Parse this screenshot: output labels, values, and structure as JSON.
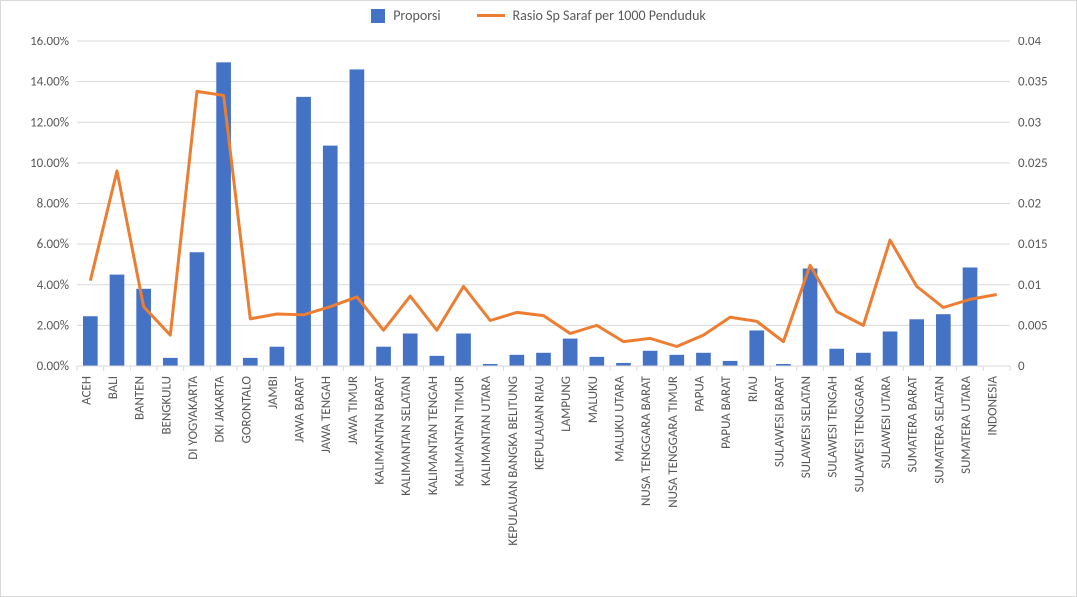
{
  "chart": {
    "type": "bar+line",
    "background_color": "#ffffff",
    "border_color": "#d9d9d9",
    "grid_color": "#d9d9d9",
    "text_color": "#595959",
    "font_family": "Calibri, Arial, sans-serif",
    "label_fontsize": 13,
    "legend": {
      "position": "top-center",
      "items": [
        {
          "label": "Proporsi",
          "type": "bar",
          "color": "#4472c4"
        },
        {
          "label": "Rasio Sp Saraf per 1000 Penduduk",
          "type": "line",
          "color": "#ed7d31"
        }
      ]
    },
    "y_left": {
      "min": 0,
      "max": 0.16,
      "tick_step": 0.02,
      "format": "percent2"
    },
    "y_right": {
      "min": 0,
      "max": 0.04,
      "tick_step": 0.005,
      "format": "decimal"
    },
    "categories": [
      "ACEH",
      "BALI",
      "BANTEN",
      "BENGKULU",
      "DI YOGYAKARTA",
      "DKI JAKARTA",
      "GORONTALO",
      "JAMBI",
      "JAWA BARAT",
      "JAWA TENGAH",
      "JAWA TIMUR",
      "KALIMANTAN BARAT",
      "KALIMANTAN SELATAN",
      "KALIMANTAN TENGAH",
      "KALIMANTAN TIMUR",
      "KALIMANTAN UTARA",
      "KEPULAUAN BANGKA BELITUNG",
      "KEPULAUAN RIAU",
      "LAMPUNG",
      "MALUKU",
      "MALUKU UTARA",
      "NUSA TENGGARA BARAT",
      "NUSA TENGGARA TIMUR",
      "PAPUA",
      "PAPUA BARAT",
      "RIAU",
      "SULAWESI BARAT",
      "SULAWESI SELATAN",
      "SULAWESI TENGAH",
      "SULAWESI TENGGARA",
      "SULAWESI UTARA",
      "SUMATERA BARAT",
      "SUMATERA SELATAN",
      "SUMATERA UTARA",
      "INDONESIA"
    ],
    "series": [
      {
        "name": "Proporsi",
        "type": "bar",
        "color": "#4472c4",
        "axis": "left",
        "bar_width": 0.55,
        "values": [
          0.0245,
          0.045,
          0.038,
          0.004,
          0.056,
          0.1495,
          0.004,
          0.0095,
          0.1325,
          0.1085,
          0.146,
          0.0095,
          0.016,
          0.005,
          0.016,
          0.001,
          0.0055,
          0.0065,
          0.0135,
          0.0045,
          0.0015,
          0.0075,
          0.0055,
          0.0065,
          0.0025,
          0.0175,
          0.001,
          0.048,
          0.0085,
          0.0065,
          0.017,
          0.023,
          0.0255,
          0.0485,
          0.0
        ]
      },
      {
        "name": "Rasio Sp Saraf per 1000 Penduduk",
        "type": "line",
        "color": "#ed7d31",
        "axis": "right",
        "line_width": 3,
        "values": [
          0.0105,
          0.024,
          0.0073,
          0.0038,
          0.0338,
          0.0333,
          0.0058,
          0.0064,
          0.0063,
          0.0073,
          0.0085,
          0.0044,
          0.0086,
          0.0044,
          0.0098,
          0.0056,
          0.0066,
          0.0062,
          0.004,
          0.005,
          0.003,
          0.0034,
          0.0024,
          0.0038,
          0.006,
          0.0055,
          0.003,
          0.0124,
          0.0067,
          0.005,
          0.0155,
          0.0098,
          0.0072,
          0.0082,
          0.0088
        ]
      }
    ]
  }
}
